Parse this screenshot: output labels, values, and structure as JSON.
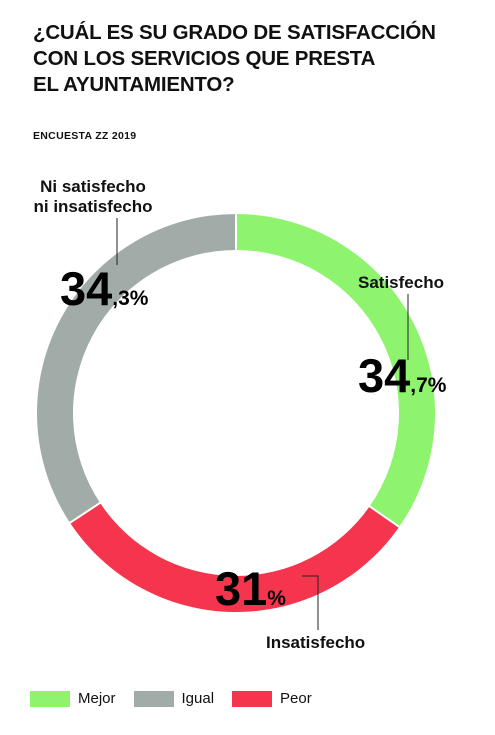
{
  "title": "¿CUÁL ES SU GRADO DE SATISFACCIÓN\nCON LOS SERVICIOS QUE PRESTA\nEL AYUNTAMIENTO?",
  "source": "ENCUESTA ZZ 2019",
  "chart_data": {
    "type": "pie",
    "donut": true,
    "slices": [
      {
        "label": "Satisfecho",
        "value": 34.7,
        "big": "34",
        "small": ",7%",
        "color": "#8ef46e",
        "legend": "Mejor"
      },
      {
        "label": "Insatisfecho",
        "value": 31,
        "big": "31",
        "small": "%",
        "color": "#f5344d",
        "legend": "Peor"
      },
      {
        "label_lines": [
          "Ni satisfecho",
          "ni insatisfecho"
        ],
        "value": 34.3,
        "big": "34",
        "small": ",3%",
        "color": "#a1aca8",
        "legend": "Igual"
      }
    ],
    "legend": [
      {
        "label": "Mejor",
        "color": "#8ef46e"
      },
      {
        "label": "Igual",
        "color": "#a1aca8"
      },
      {
        "label": "Peor",
        "color": "#f5344d"
      }
    ]
  }
}
